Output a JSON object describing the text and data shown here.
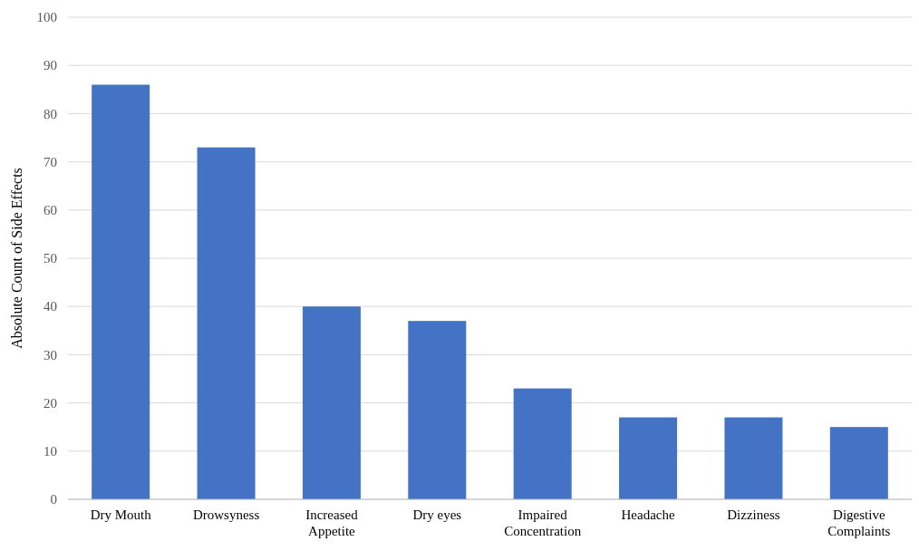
{
  "chart_data": {
    "type": "bar",
    "ylabel": "Absolute Count of Side Effects",
    "categories": [
      "Dry Mouth",
      "Drowsyness",
      "Increased Appetite",
      "Dry eyes",
      "Impaired Concentration",
      "Headache",
      "Dizziness",
      "Digestive Complaints"
    ],
    "values": [
      86,
      73,
      40,
      37,
      23,
      17,
      17,
      15
    ],
    "color": "#4472c4",
    "ylim": [
      0,
      100
    ],
    "yticks": [
      0,
      10,
      20,
      30,
      40,
      50,
      60,
      70,
      80,
      90,
      100
    ],
    "grid": "y"
  }
}
